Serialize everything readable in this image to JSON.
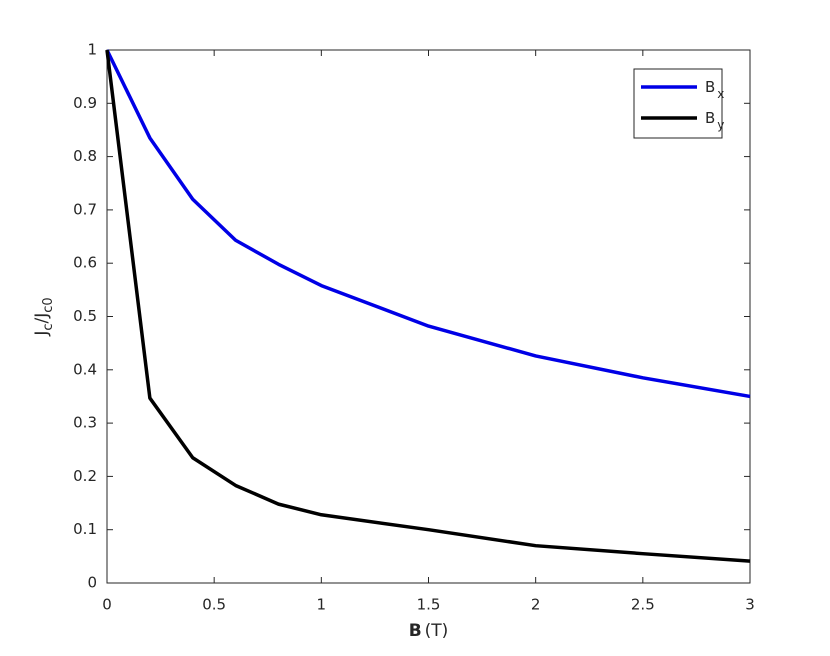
{
  "chart_data": {
    "type": "line",
    "xlabel": [
      {
        "text": "B",
        "bold": true
      },
      {
        "text": "(T)"
      }
    ],
    "ylabel": [
      {
        "text": "J"
      },
      {
        "text": "c",
        "sub": true
      },
      {
        "text": "/J"
      },
      {
        "text": "c0",
        "sub": true
      }
    ],
    "x": [
      0,
      0.2,
      0.4,
      0.6,
      0.8,
      1.0,
      1.5,
      2.0,
      2.5,
      3.0
    ],
    "series": [
      {
        "name": "B",
        "subscript": "x",
        "color": "#0000e6",
        "values": [
          1,
          0.835,
          0.72,
          0.643,
          0.598,
          0.558,
          0.482,
          0.426,
          0.385,
          0.35
        ]
      },
      {
        "name": "B",
        "subscript": "y",
        "color": "#000000",
        "values": [
          1,
          0.347,
          0.235,
          0.183,
          0.148,
          0.128,
          0.1,
          0.07,
          0.055,
          0.041
        ]
      }
    ],
    "xlim": [
      0,
      3
    ],
    "xticks": [
      0,
      0.5,
      1,
      1.5,
      2,
      2.5,
      3
    ],
    "ylim": [
      0,
      1
    ],
    "yticks": [
      0,
      0.1,
      0.2,
      0.3,
      0.4,
      0.5,
      0.6,
      0.7,
      0.8,
      0.9,
      1
    ],
    "grid": false,
    "legend": "upper right"
  }
}
